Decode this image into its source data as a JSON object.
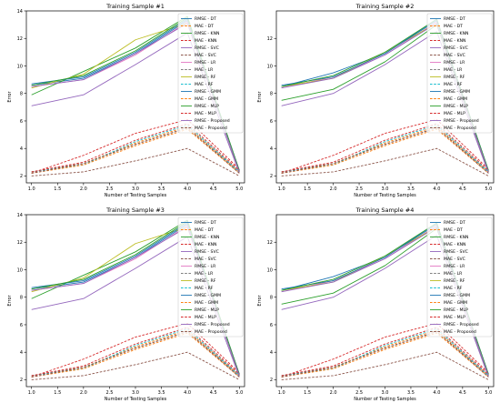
{
  "chart_data": [
    {
      "type": "line",
      "title": "Training Sample #1",
      "xlabel": "Number of Testing Samples",
      "ylabel": "Error",
      "x": [
        1,
        2,
        3,
        4,
        5
      ],
      "xlim": [
        0.9,
        5.1
      ],
      "ylim": [
        1.5,
        14.0
      ],
      "xticks": [
        "1.0",
        "1.5",
        "2.0",
        "2.5",
        "3.0",
        "3.5",
        "4.0",
        "4.5",
        "5.0"
      ],
      "yticks": [
        "2",
        "4",
        "6",
        "8",
        "10",
        "12",
        "14"
      ],
      "grid": false,
      "legend": "right",
      "series": [
        {
          "name": "RMSE - DT",
          "color": "#1f77b4",
          "dash": false,
          "values": [
            8.6,
            9.1,
            10.9,
            13.3,
            2.4
          ]
        },
        {
          "name": "MAE - DT",
          "color": "#ff7f0e",
          "dash": true,
          "values": [
            2.3,
            2.9,
            4.4,
            5.6,
            2.3
          ]
        },
        {
          "name": "RMSE - KNN",
          "color": "#2ca02c",
          "dash": false,
          "values": [
            7.9,
            9.6,
            11.3,
            13.6,
            2.3
          ]
        },
        {
          "name": "MAE - KNN",
          "color": "#d62728",
          "dash": true,
          "values": [
            2.2,
            3.5,
            5.1,
            6.1,
            2.5
          ]
        },
        {
          "name": "RMSE - SVC",
          "color": "#9467bd",
          "dash": false,
          "values": [
            7.1,
            7.9,
            10.1,
            12.4,
            2.2
          ]
        },
        {
          "name": "MAE - SVC",
          "color": "#8c564b",
          "dash": true,
          "values": [
            2.0,
            2.3,
            3.1,
            4.0,
            2.0
          ]
        },
        {
          "name": "RMSE - LR",
          "color": "#e377c2",
          "dash": false,
          "values": [
            8.5,
            9.0,
            10.8,
            13.2,
            2.4
          ]
        },
        {
          "name": "MAE - LR",
          "color": "#7f7f7f",
          "dash": true,
          "values": [
            2.3,
            2.9,
            4.3,
            5.5,
            2.3
          ]
        },
        {
          "name": "RMSE - RF",
          "color": "#bcbd22",
          "dash": false,
          "values": [
            8.4,
            9.4,
            11.9,
            13.1,
            2.3
          ]
        },
        {
          "name": "MAE - RF",
          "color": "#17becf",
          "dash": true,
          "values": [
            2.3,
            2.8,
            4.5,
            5.7,
            2.3
          ]
        },
        {
          "name": "RMSE - GMM",
          "color": "#1f77b4",
          "dash": false,
          "values": [
            8.7,
            9.2,
            11.0,
            13.4,
            2.4
          ]
        },
        {
          "name": "MAE - GMM",
          "color": "#ff7f0e",
          "dash": true,
          "values": [
            2.2,
            2.8,
            4.2,
            5.4,
            2.2
          ]
        },
        {
          "name": "RMSE - MLP",
          "color": "#2ca02c",
          "dash": false,
          "values": [
            8.6,
            9.3,
            11.1,
            13.5,
            2.4
          ]
        },
        {
          "name": "MAE - MLP",
          "color": "#d62728",
          "dash": true,
          "values": [
            2.3,
            3.0,
            4.6,
            5.8,
            2.4
          ]
        },
        {
          "name": "RMSE - Proposed",
          "color": "#9467bd",
          "dash": false,
          "values": [
            8.5,
            9.0,
            10.9,
            13.1,
            2.3
          ]
        },
        {
          "name": "MAE - Proposed",
          "color": "#8c564b",
          "dash": true,
          "values": [
            2.2,
            2.9,
            4.3,
            5.5,
            2.2
          ]
        }
      ]
    },
    {
      "type": "line",
      "title": "Training Sample #2",
      "xlabel": "Number of Testing Samples",
      "ylabel": "Error",
      "x": [
        1,
        2,
        3,
        4,
        5
      ],
      "xlim": [
        0.9,
        5.1
      ],
      "ylim": [
        1.5,
        14.0
      ],
      "xticks": [
        "1.0",
        "1.5",
        "2.0",
        "2.5",
        "3.0",
        "3.5",
        "4.0",
        "4.5",
        "5.0"
      ],
      "yticks": [
        "2",
        "4",
        "6",
        "8",
        "10",
        "12"
      ],
      "grid": false,
      "legend": "right",
      "series": [
        {
          "name": "RMSE - DT",
          "color": "#1f77b4",
          "dash": false,
          "values": [
            8.5,
            9.5,
            10.9,
            13.4,
            2.4
          ]
        },
        {
          "name": "MAE - DT",
          "color": "#ff7f0e",
          "dash": true,
          "values": [
            2.3,
            2.9,
            4.4,
            5.6,
            2.3
          ]
        },
        {
          "name": "RMSE - KNN",
          "color": "#2ca02c",
          "dash": false,
          "values": [
            7.5,
            8.3,
            10.3,
            13.0,
            2.3
          ]
        },
        {
          "name": "MAE - KNN",
          "color": "#d62728",
          "dash": true,
          "values": [
            2.2,
            3.5,
            5.1,
            6.1,
            2.5
          ]
        },
        {
          "name": "RMSE - SVC",
          "color": "#9467bd",
          "dash": false,
          "values": [
            7.1,
            8.0,
            10.1,
            12.5,
            2.2
          ]
        },
        {
          "name": "MAE - SVC",
          "color": "#8c564b",
          "dash": true,
          "values": [
            2.0,
            2.3,
            3.1,
            4.0,
            2.0
          ]
        },
        {
          "name": "RMSE - LR",
          "color": "#e377c2",
          "dash": false,
          "values": [
            8.4,
            9.2,
            10.8,
            13.2,
            2.4
          ]
        },
        {
          "name": "MAE - LR",
          "color": "#7f7f7f",
          "dash": true,
          "values": [
            2.3,
            2.9,
            4.3,
            5.5,
            2.3
          ]
        },
        {
          "name": "RMSE - RF",
          "color": "#bcbd22",
          "dash": false,
          "values": [
            8.5,
            9.1,
            11.0,
            13.1,
            2.3
          ]
        },
        {
          "name": "MAE - RF",
          "color": "#17becf",
          "dash": true,
          "values": [
            2.3,
            2.8,
            4.5,
            5.7,
            2.3
          ]
        },
        {
          "name": "RMSE - GMM",
          "color": "#1f77b4",
          "dash": false,
          "values": [
            8.6,
            9.2,
            10.9,
            13.3,
            2.4
          ]
        },
        {
          "name": "MAE - GMM",
          "color": "#ff7f0e",
          "dash": true,
          "values": [
            2.2,
            2.8,
            4.2,
            5.4,
            2.2
          ]
        },
        {
          "name": "RMSE - MLP",
          "color": "#2ca02c",
          "dash": false,
          "values": [
            8.5,
            9.3,
            11.0,
            13.4,
            2.4
          ]
        },
        {
          "name": "MAE - MLP",
          "color": "#d62728",
          "dash": true,
          "values": [
            2.3,
            3.0,
            4.6,
            5.8,
            2.4
          ]
        },
        {
          "name": "RMSE - Proposed",
          "color": "#9467bd",
          "dash": false,
          "values": [
            8.4,
            9.1,
            10.8,
            13.1,
            2.3
          ]
        },
        {
          "name": "MAE - Proposed",
          "color": "#8c564b",
          "dash": true,
          "values": [
            2.2,
            2.9,
            4.3,
            5.5,
            2.2
          ]
        }
      ]
    },
    {
      "type": "line",
      "title": "Training Sample #3",
      "xlabel": "Number of Testing Samples",
      "ylabel": "Error",
      "x": [
        1,
        2,
        3,
        4,
        5
      ],
      "xlim": [
        0.9,
        5.1
      ],
      "ylim": [
        1.5,
        14.0
      ],
      "xticks": [
        "1.0",
        "1.5",
        "2.0",
        "2.5",
        "3.0",
        "3.5",
        "4.0",
        "4.5",
        "5.0"
      ],
      "yticks": [
        "2",
        "4",
        "6",
        "8",
        "10",
        "12",
        "14"
      ],
      "grid": false,
      "legend": "right",
      "series": [
        {
          "name": "RMSE - DT",
          "color": "#1f77b4",
          "dash": false,
          "values": [
            8.6,
            9.1,
            10.9,
            13.3,
            2.4
          ]
        },
        {
          "name": "MAE - DT",
          "color": "#ff7f0e",
          "dash": true,
          "values": [
            2.3,
            2.9,
            4.4,
            5.6,
            2.3
          ]
        },
        {
          "name": "RMSE - KNN",
          "color": "#2ca02c",
          "dash": false,
          "values": [
            7.9,
            9.6,
            11.3,
            13.6,
            2.3
          ]
        },
        {
          "name": "MAE - KNN",
          "color": "#d62728",
          "dash": true,
          "values": [
            2.2,
            3.5,
            5.1,
            6.1,
            2.5
          ]
        },
        {
          "name": "RMSE - SVC",
          "color": "#9467bd",
          "dash": false,
          "values": [
            7.1,
            7.9,
            10.1,
            12.4,
            2.2
          ]
        },
        {
          "name": "MAE - SVC",
          "color": "#8c564b",
          "dash": true,
          "values": [
            2.0,
            2.3,
            3.1,
            4.0,
            2.0
          ]
        },
        {
          "name": "RMSE - LR",
          "color": "#e377c2",
          "dash": false,
          "values": [
            8.5,
            9.0,
            10.8,
            13.2,
            2.4
          ]
        },
        {
          "name": "MAE - LR",
          "color": "#7f7f7f",
          "dash": true,
          "values": [
            2.3,
            2.9,
            4.3,
            5.5,
            2.3
          ]
        },
        {
          "name": "RMSE - RF",
          "color": "#bcbd22",
          "dash": false,
          "values": [
            8.4,
            9.4,
            11.9,
            13.1,
            2.3
          ]
        },
        {
          "name": "MAE - RF",
          "color": "#17becf",
          "dash": true,
          "values": [
            2.3,
            2.8,
            4.5,
            5.7,
            2.3
          ]
        },
        {
          "name": "RMSE - GMM",
          "color": "#1f77b4",
          "dash": false,
          "values": [
            8.7,
            9.2,
            11.0,
            13.4,
            2.4
          ]
        },
        {
          "name": "MAE - GMM",
          "color": "#ff7f0e",
          "dash": true,
          "values": [
            2.2,
            2.8,
            4.2,
            5.4,
            2.2
          ]
        },
        {
          "name": "RMSE - MLP",
          "color": "#2ca02c",
          "dash": false,
          "values": [
            8.6,
            9.3,
            11.1,
            13.5,
            2.4
          ]
        },
        {
          "name": "MAE - MLP",
          "color": "#d62728",
          "dash": true,
          "values": [
            2.3,
            3.0,
            4.6,
            5.8,
            2.4
          ]
        },
        {
          "name": "RMSE - Proposed",
          "color": "#9467bd",
          "dash": false,
          "values": [
            8.5,
            9.0,
            10.9,
            13.1,
            2.3
          ]
        },
        {
          "name": "MAE - Proposed",
          "color": "#8c564b",
          "dash": true,
          "values": [
            2.2,
            2.9,
            4.3,
            5.5,
            2.2
          ]
        }
      ]
    },
    {
      "type": "line",
      "title": "Training Sample #4",
      "xlabel": "Number of Testing Samples",
      "ylabel": "Error",
      "x": [
        1,
        2,
        3,
        4,
        5
      ],
      "xlim": [
        0.9,
        5.1
      ],
      "ylim": [
        1.5,
        14.0
      ],
      "xticks": [
        "1.0",
        "1.5",
        "2.0",
        "2.5",
        "3.0",
        "3.5",
        "4.0",
        "4.5",
        "5.0"
      ],
      "yticks": [
        "2",
        "4",
        "6",
        "8",
        "10",
        "12"
      ],
      "grid": false,
      "legend": "right",
      "series": [
        {
          "name": "RMSE - DT",
          "color": "#1f77b4",
          "dash": false,
          "values": [
            8.5,
            9.5,
            10.9,
            13.4,
            2.4
          ]
        },
        {
          "name": "MAE - DT",
          "color": "#ff7f0e",
          "dash": true,
          "values": [
            2.3,
            2.9,
            4.4,
            5.6,
            2.3
          ]
        },
        {
          "name": "RMSE - KNN",
          "color": "#2ca02c",
          "dash": false,
          "values": [
            7.5,
            8.3,
            10.3,
            13.0,
            2.3
          ]
        },
        {
          "name": "MAE - KNN",
          "color": "#d62728",
          "dash": true,
          "values": [
            2.2,
            3.5,
            5.1,
            6.1,
            2.5
          ]
        },
        {
          "name": "RMSE - SVC",
          "color": "#9467bd",
          "dash": false,
          "values": [
            7.1,
            8.0,
            10.1,
            12.5,
            2.2
          ]
        },
        {
          "name": "MAE - SVC",
          "color": "#8c564b",
          "dash": true,
          "values": [
            2.0,
            2.3,
            3.1,
            4.0,
            2.0
          ]
        },
        {
          "name": "RMSE - LR",
          "color": "#e377c2",
          "dash": false,
          "values": [
            8.4,
            9.2,
            10.8,
            13.2,
            2.4
          ]
        },
        {
          "name": "MAE - LR",
          "color": "#7f7f7f",
          "dash": true,
          "values": [
            2.3,
            2.9,
            4.3,
            5.5,
            2.3
          ]
        },
        {
          "name": "RMSE - RF",
          "color": "#bcbd22",
          "dash": false,
          "values": [
            8.5,
            9.1,
            11.0,
            13.1,
            2.3
          ]
        },
        {
          "name": "MAE - RF",
          "color": "#17becf",
          "dash": true,
          "values": [
            2.3,
            2.8,
            4.5,
            5.7,
            2.3
          ]
        },
        {
          "name": "RMSE - GMM",
          "color": "#1f77b4",
          "dash": false,
          "values": [
            8.6,
            9.2,
            10.9,
            13.3,
            2.4
          ]
        },
        {
          "name": "MAE - GMM",
          "color": "#ff7f0e",
          "dash": true,
          "values": [
            2.2,
            2.8,
            4.2,
            5.4,
            2.2
          ]
        },
        {
          "name": "RMSE - MLP",
          "color": "#2ca02c",
          "dash": false,
          "values": [
            8.5,
            9.3,
            11.0,
            13.4,
            2.4
          ]
        },
        {
          "name": "MAE - MLP",
          "color": "#d62728",
          "dash": true,
          "values": [
            2.3,
            3.0,
            4.6,
            5.8,
            2.4
          ]
        },
        {
          "name": "RMSE - Proposed",
          "color": "#9467bd",
          "dash": false,
          "values": [
            8.4,
            9.1,
            10.8,
            13.1,
            2.3
          ]
        },
        {
          "name": "MAE - Proposed",
          "color": "#8c564b",
          "dash": true,
          "values": [
            2.2,
            2.9,
            4.3,
            5.5,
            2.2
          ]
        }
      ]
    }
  ]
}
